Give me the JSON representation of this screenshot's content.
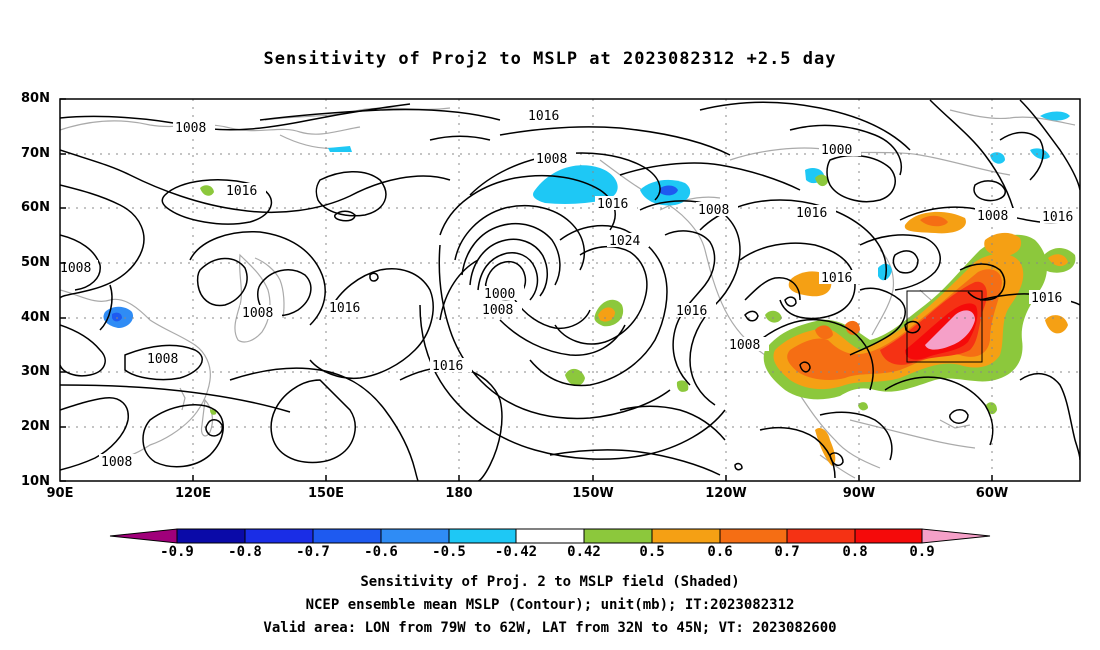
{
  "title": "Sensitivity of Proj2 to MSLP at 2023082312 +2.5 day",
  "lat_ticks": [
    "80N",
    "70N",
    "60N",
    "50N",
    "40N",
    "30N",
    "20N",
    "10N"
  ],
  "lon_ticks": [
    "90E",
    "120E",
    "150E",
    "180",
    "150W",
    "120W",
    "90W",
    "60W"
  ],
  "colorbar": {
    "labels": [
      "-0.9",
      "-0.8",
      "-0.7",
      "-0.6",
      "-0.5",
      "-0.42",
      "0.42",
      "0.5",
      "0.6",
      "0.7",
      "0.8",
      "0.9"
    ],
    "colors": [
      "#a0007a",
      "#0a0aa8",
      "#1a2de6",
      "#1e5af0",
      "#2f8cf5",
      "#1ec8f5",
      "#ffffff",
      "#8cc83c",
      "#f5a014",
      "#f56e14",
      "#f53214",
      "#f50a0a",
      "#f5a0c8"
    ]
  },
  "contour_labels": {
    "c1008_a": "1008",
    "c1016_a": "1016",
    "c1008_b": "1008",
    "c1008_c": "1008",
    "c1008_d": "1008",
    "c1016_b": "1016",
    "c1016_c": "1016",
    "c1016_d": "1016",
    "c1008_e": "1008",
    "c1016_e": "1016",
    "c1024": "1024",
    "c1000_a": "1000",
    "c1008_f": "1008",
    "c1016_f": "1016",
    "c1008_g": "1008",
    "c1008_h": "1008",
    "c1016_g": "1016",
    "c1000_b": "1000",
    "c1016_h": "1016",
    "c1008_i": "1008",
    "c1016_i": "1016",
    "c1016_j": "1016",
    "c1008_j": "1008"
  },
  "captions": {
    "line1": "Sensitivity of Proj. 2 to MSLP field (Shaded)",
    "line2": "NCEP ensemble mean MSLP (Contour); unit(mb); IT:2023082312",
    "line3": "Valid area: LON from 79W to 62W, LAT from 32N to 45N; VT: 2023082600"
  }
}
